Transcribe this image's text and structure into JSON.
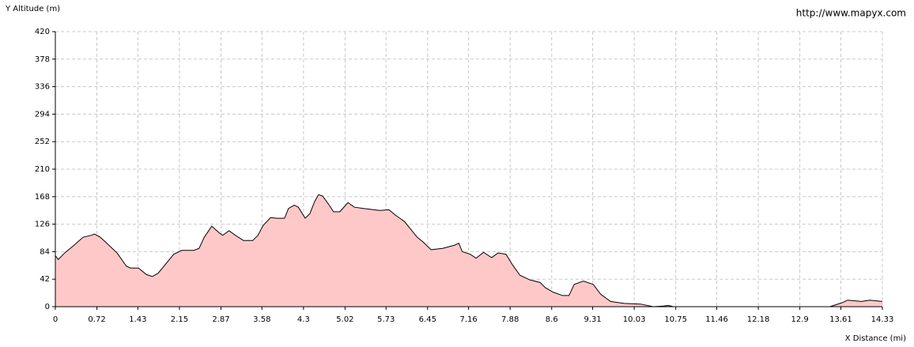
{
  "chart_data": {
    "type": "area",
    "y_label": "Y Altitude (m)",
    "x_label": "X Distance (mi)",
    "watermark": "http://www.mapyx.com",
    "x": [
      0,
      0.05,
      0.16,
      0.3,
      0.48,
      0.62,
      0.68,
      0.78,
      0.89,
      1.07,
      1.23,
      1.3,
      1.44,
      1.58,
      1.68,
      1.78,
      1.92,
      2.05,
      2.19,
      2.4,
      2.49,
      2.58,
      2.71,
      2.85,
      2.9,
      3.01,
      3.12,
      3.26,
      3.42,
      3.51,
      3.6,
      3.73,
      3.84,
      3.97,
      4.04,
      4.14,
      4.21,
      4.33,
      4.41,
      4.49,
      4.56,
      4.63,
      4.73,
      4.82,
      4.93,
      5.07,
      5.18,
      5.34,
      5.62,
      5.78,
      5.89,
      6.05,
      6.16,
      6.27,
      6.37,
      6.51,
      6.71,
      6.92,
      6.99,
      7.05,
      7.19,
      7.29,
      7.42,
      7.56,
      7.67,
      7.81,
      7.92,
      8.05,
      8.22,
      8.4,
      8.49,
      8.63,
      8.79,
      8.9,
      8.99,
      9.15,
      9.32,
      9.45,
      9.62,
      9.86,
      10.14,
      10.36,
      10.55,
      10.62,
      10.71,
      13.42,
      13.63,
      13.73,
      13.97,
      14.11,
      14.33
    ],
    "values": [
      78,
      72,
      82,
      92,
      106,
      109,
      111,
      106,
      97,
      82,
      62,
      59,
      59,
      49,
      46,
      51,
      66,
      80,
      86,
      86,
      89,
      106,
      123,
      112,
      109,
      116,
      109,
      101,
      101,
      109,
      124,
      136,
      135,
      135,
      150,
      155,
      152,
      135,
      142,
      160,
      171,
      169,
      157,
      145,
      145,
      159,
      152,
      150,
      147,
      148,
      140,
      130,
      118,
      106,
      99,
      87,
      89,
      94,
      97,
      84,
      80,
      74,
      83,
      75,
      82,
      80,
      64,
      48,
      41,
      37,
      29,
      22,
      17,
      17,
      34,
      39,
      34,
      19,
      8,
      5,
      4,
      0,
      1,
      2,
      0,
      0,
      6,
      10,
      8,
      10,
      8
    ],
    "color": "#ffc8c8",
    "line_color": "#000000",
    "xlim": [
      0,
      14.33
    ],
    "ylim": [
      0,
      420
    ],
    "xticks": [
      0,
      0.72,
      1.43,
      2.15,
      2.87,
      3.58,
      4.3,
      5.02,
      5.73,
      6.45,
      7.16,
      7.88,
      8.6,
      9.31,
      10.03,
      10.75,
      11.46,
      12.18,
      12.9,
      13.61,
      14.33
    ],
    "yticks": [
      0,
      42,
      84,
      126,
      168,
      210,
      252,
      294,
      336,
      378,
      420
    ],
    "grid": true
  }
}
